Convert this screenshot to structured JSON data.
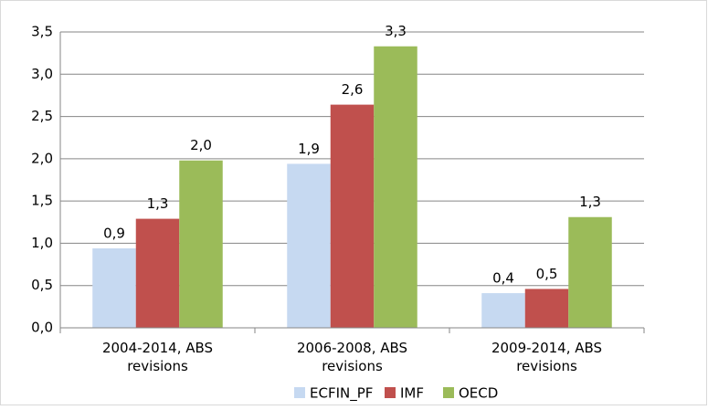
{
  "chart_data": {
    "type": "bar",
    "categories": [
      "2004-2014, ABS revisions",
      "2006-2008, ABS revisions",
      "2009-2014, ABS revisions"
    ],
    "series": [
      {
        "name": "ECFIN_PF",
        "color": "#c6d9f1",
        "values": [
          0.94,
          1.94,
          0.41
        ],
        "value_labels": [
          "0,9",
          "1,9",
          "0,4"
        ]
      },
      {
        "name": "IMF",
        "color": "#c0504d",
        "values": [
          1.29,
          2.64,
          0.46
        ],
        "value_labels": [
          "1,3",
          "2,6",
          "0,5"
        ]
      },
      {
        "name": "OECD",
        "color": "#9bbb59",
        "values": [
          1.98,
          3.33,
          1.31
        ],
        "value_labels": [
          "2,0",
          "3,3",
          "1,3"
        ]
      }
    ],
    "ylim": [
      0,
      3.5
    ],
    "yticks": [
      {
        "value": 0,
        "label": "0,0"
      },
      {
        "value": 0.5,
        "label": "0,5"
      },
      {
        "value": 1,
        "label": "1,0"
      },
      {
        "value": 1.5,
        "label": "1,5"
      },
      {
        "value": 2,
        "label": "2,0"
      },
      {
        "value": 2.5,
        "label": "2,5"
      },
      {
        "value": 3,
        "label": "3,0"
      },
      {
        "value": 3.5,
        "label": "3,5"
      }
    ],
    "grid": true,
    "legend": "bottom"
  }
}
